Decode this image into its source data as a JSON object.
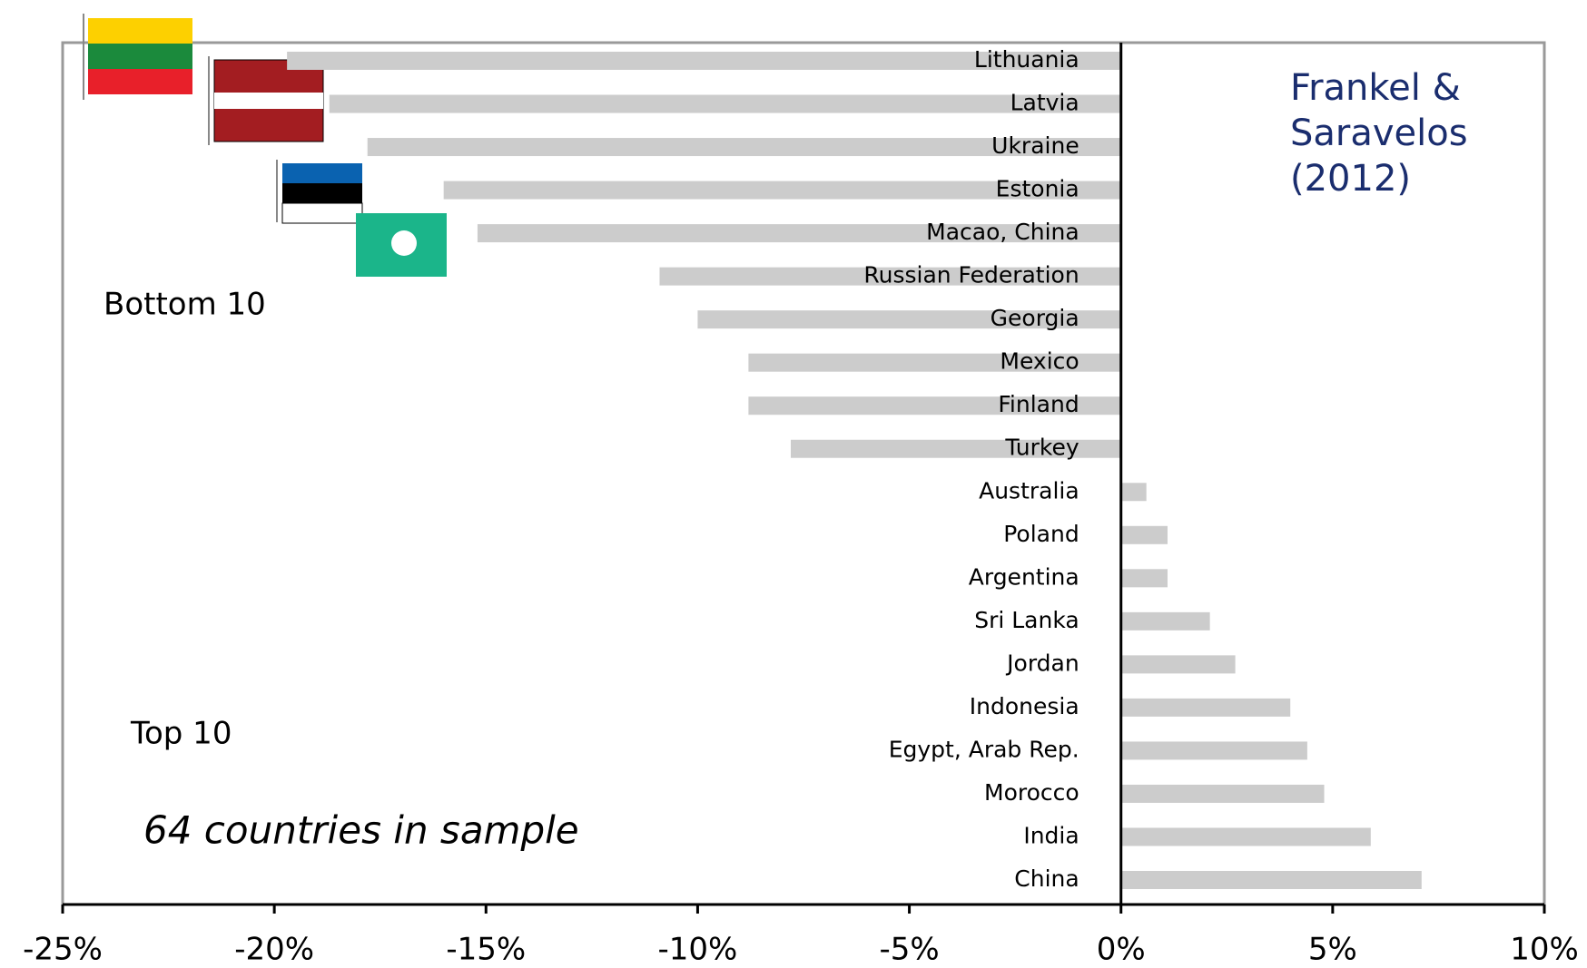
{
  "chart_data": {
    "type": "bar",
    "orientation": "horizontal",
    "categories": [
      "Lithuania",
      "Latvia",
      "Ukraine",
      "Estonia",
      "Macao, China",
      "Russian Federation",
      "Georgia",
      "Mexico",
      "Finland",
      "Turkey",
      "Australia",
      "Poland",
      "Argentina",
      "Sri Lanka",
      "Jordan",
      "Indonesia",
      "Egypt, Arab Rep.",
      "Morocco",
      "India",
      "China"
    ],
    "values": [
      -19.7,
      -18.7,
      -17.8,
      -16.0,
      -15.2,
      -10.9,
      -10.0,
      -8.8,
      -8.8,
      -7.8,
      0.6,
      1.1,
      1.1,
      2.1,
      2.7,
      4.0,
      4.4,
      4.8,
      5.9,
      7.1
    ],
    "color": "#cccccc",
    "xlim": [
      -25,
      10
    ],
    "xticks": [
      {
        "value": -25,
        "label": "-25%"
      },
      {
        "value": -20,
        "label": "-20%"
      },
      {
        "value": -15,
        "label": "-15%"
      },
      {
        "value": -10,
        "label": "-10%"
      },
      {
        "value": -5,
        "label": "-5%"
      },
      {
        "value": 0,
        "label": "0%"
      },
      {
        "value": 5,
        "label": "5%"
      },
      {
        "value": 10,
        "label": "10%"
      }
    ],
    "source": [
      "Frankel &",
      "Saravelos",
      "(2012)"
    ],
    "annotations": [
      "Bottom 10",
      "Top 10",
      "64 countries in sample"
    ]
  }
}
